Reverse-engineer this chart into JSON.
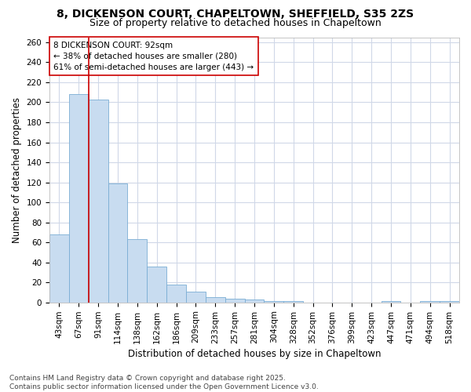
{
  "title_line1": "8, DICKENSON COURT, CHAPELTOWN, SHEFFIELD, S35 2ZS",
  "title_line2": "Size of property relative to detached houses in Chapeltown",
  "xlabel": "Distribution of detached houses by size in Chapeltown",
  "ylabel": "Number of detached properties",
  "bar_color": "#c8dcf0",
  "bar_edge_color": "#7aadd4",
  "annotation_line1": "8 DICKENSON COURT: 92sqm",
  "annotation_line2": "← 38% of detached houses are smaller (280)",
  "annotation_line3": "61% of semi-detached houses are larger (443) →",
  "vline_color": "#cc0000",
  "categories": [
    "43sqm",
    "67sqm",
    "91sqm",
    "114sqm",
    "138sqm",
    "162sqm",
    "186sqm",
    "209sqm",
    "233sqm",
    "257sqm",
    "281sqm",
    "304sqm",
    "328sqm",
    "352sqm",
    "376sqm",
    "399sqm",
    "423sqm",
    "447sqm",
    "471sqm",
    "494sqm",
    "518sqm"
  ],
  "values": [
    68,
    208,
    203,
    119,
    63,
    36,
    18,
    11,
    5,
    4,
    3,
    1,
    1,
    0,
    0,
    0,
    0,
    1,
    0,
    1,
    1
  ],
  "ylim": [
    0,
    265
  ],
  "yticks": [
    0,
    20,
    40,
    60,
    80,
    100,
    120,
    140,
    160,
    180,
    200,
    220,
    240,
    260
  ],
  "footer_text": "Contains HM Land Registry data © Crown copyright and database right 2025.\nContains public sector information licensed under the Open Government Licence v3.0.",
  "bg_color": "#ffffff",
  "plot_bg_color": "#ffffff",
  "grid_color": "#d0d8e8",
  "title_fontsize": 10,
  "subtitle_fontsize": 9,
  "axis_label_fontsize": 8.5,
  "tick_fontsize": 7.5,
  "annotation_fontsize": 7.5,
  "footer_fontsize": 6.5
}
